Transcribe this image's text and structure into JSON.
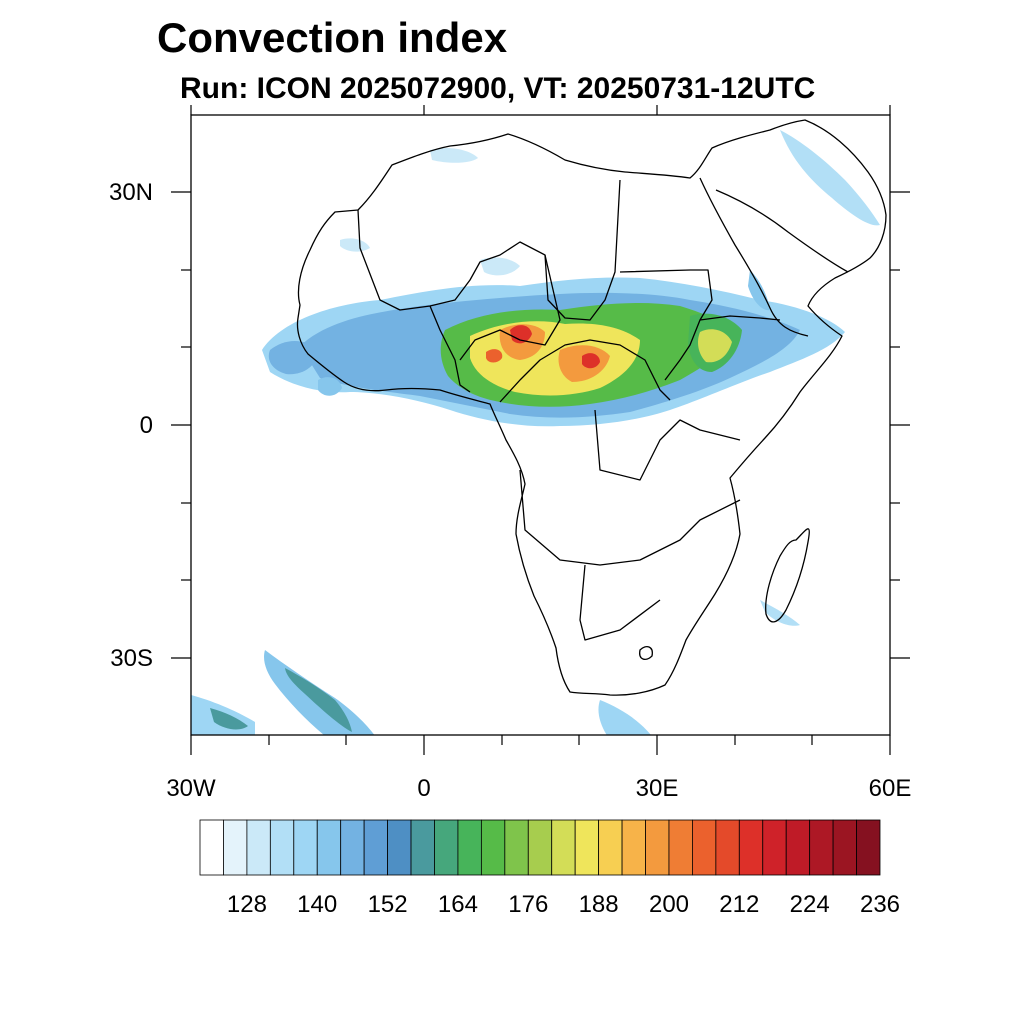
{
  "title": "Convection index",
  "subtitle": "Run: ICON 2025072900,  VT: 20250731-12UTC",
  "axes": {
    "lat_labels": [
      "30N",
      "0",
      "30S"
    ],
    "lon_labels": [
      "30W",
      "0",
      "30E",
      "60E"
    ],
    "lat_range": [
      -40,
      40
    ],
    "lon_range": [
      -30,
      60
    ]
  },
  "colorbar": {
    "colors": [
      "#ffffff",
      "#e4f3fb",
      "#cbe9f8",
      "#b2dff6",
      "#9ed6f4",
      "#86c6ec",
      "#73b2e2",
      "#5f9ed5",
      "#4e8fc4",
      "#4a9a9e",
      "#46a77c",
      "#47b45a",
      "#56bb48",
      "#7fc44b",
      "#a7cd4e",
      "#d3dd57",
      "#efe55b",
      "#f7cf52",
      "#f7b349",
      "#f39a3e",
      "#ef7d34",
      "#eb612d",
      "#e44a2a",
      "#dd3029",
      "#cf2229",
      "#bf1b27",
      "#ad1825",
      "#9b1522",
      "#851120"
    ],
    "tick_labels": [
      "128",
      "140",
      "152",
      "164",
      "176",
      "188",
      "200",
      "212",
      "224",
      "236"
    ]
  }
}
